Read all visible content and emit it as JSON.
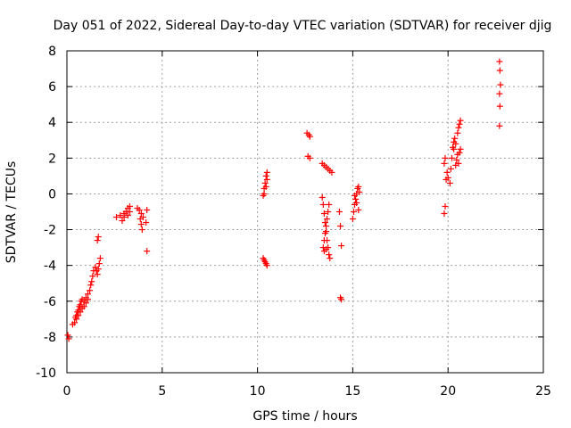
{
  "chart_data": {
    "type": "scatter",
    "title": "Day 051 of 2022, Sidereal Day-to-day VTEC variation (SDTVAR) for receiver djig",
    "xlabel": "GPS time / hours",
    "ylabel": "SDTVAR / TECUs",
    "xlim": [
      0,
      25
    ],
    "ylim": [
      -10,
      8
    ],
    "xticks": [
      "0",
      "5",
      "10",
      "15",
      "20",
      "25"
    ],
    "yticks": [
      "-10",
      "-8",
      "-6",
      "-4",
      "-2",
      "0",
      "2",
      "4",
      "6",
      "8"
    ],
    "grid": true,
    "marker": "+",
    "color": "#ff0000",
    "series": [
      {
        "points": [
          [
            0.05,
            -7.9
          ],
          [
            0.1,
            -8.1
          ],
          [
            0.3,
            -7.3
          ],
          [
            0.4,
            -7.2
          ],
          [
            0.45,
            -6.9
          ],
          [
            0.5,
            -6.8
          ],
          [
            0.55,
            -6.6
          ],
          [
            0.6,
            -6.5
          ],
          [
            0.65,
            -6.3
          ],
          [
            0.7,
            -6.2
          ],
          [
            0.75,
            -6.0
          ],
          [
            0.8,
            -5.9
          ],
          [
            0.9,
            -6.0
          ],
          [
            1.0,
            -5.8
          ],
          [
            1.1,
            -5.6
          ],
          [
            1.2,
            -5.4
          ],
          [
            1.25,
            -5.1
          ],
          [
            1.3,
            -4.9
          ],
          [
            1.35,
            -4.6
          ],
          [
            1.4,
            -4.3
          ],
          [
            1.5,
            -4.1
          ],
          [
            1.55,
            -4.3
          ],
          [
            1.6,
            -4.5
          ],
          [
            1.65,
            -4.2
          ],
          [
            1.7,
            -3.9
          ],
          [
            1.75,
            -3.6
          ],
          [
            1.6,
            -2.6
          ],
          [
            1.65,
            -2.4
          ],
          [
            0.5,
            -7.0
          ],
          [
            0.6,
            -6.8
          ],
          [
            0.7,
            -6.6
          ],
          [
            0.8,
            -6.4
          ],
          [
            0.9,
            -6.3
          ],
          [
            1.0,
            -6.1
          ],
          [
            1.1,
            -5.9
          ],
          [
            2.6,
            -1.3
          ],
          [
            2.8,
            -1.2
          ],
          [
            2.9,
            -1.5
          ],
          [
            3.0,
            -1.1
          ],
          [
            3.1,
            -1.0
          ],
          [
            3.2,
            -0.8
          ],
          [
            3.3,
            -0.7
          ],
          [
            3.0,
            -1.3
          ],
          [
            3.2,
            -1.2
          ],
          [
            3.3,
            -1.0
          ],
          [
            3.7,
            -0.8
          ],
          [
            3.8,
            -0.9
          ],
          [
            3.9,
            -1.1
          ],
          [
            3.85,
            -1.4
          ],
          [
            3.9,
            -1.7
          ],
          [
            3.95,
            -2.0
          ],
          [
            4.0,
            -1.3
          ],
          [
            4.2,
            -0.9
          ],
          [
            4.15,
            -1.6
          ],
          [
            4.2,
            -3.2
          ],
          [
            10.3,
            -0.1
          ],
          [
            10.35,
            0.3
          ],
          [
            10.4,
            0.6
          ],
          [
            10.45,
            1.0
          ],
          [
            10.5,
            1.2
          ],
          [
            10.35,
            0.0
          ],
          [
            10.45,
            0.4
          ],
          [
            10.5,
            0.8
          ],
          [
            10.3,
            -3.6
          ],
          [
            10.35,
            -3.7
          ],
          [
            10.4,
            -3.8
          ],
          [
            10.45,
            -3.9
          ],
          [
            10.5,
            -4.0
          ],
          [
            12.6,
            3.4
          ],
          [
            12.7,
            3.3
          ],
          [
            12.75,
            3.2
          ],
          [
            12.65,
            2.1
          ],
          [
            12.75,
            2.0
          ],
          [
            13.4,
            1.7
          ],
          [
            13.5,
            1.6
          ],
          [
            13.6,
            1.5
          ],
          [
            13.7,
            1.4
          ],
          [
            13.8,
            1.3
          ],
          [
            13.9,
            1.2
          ],
          [
            13.4,
            -0.2
          ],
          [
            13.45,
            -0.6
          ],
          [
            13.5,
            -1.1
          ],
          [
            13.55,
            -1.6
          ],
          [
            13.6,
            -2.1
          ],
          [
            13.65,
            -2.6
          ],
          [
            13.7,
            -3.0
          ],
          [
            13.75,
            -3.4
          ],
          [
            13.8,
            -3.6
          ],
          [
            13.45,
            -3.0
          ],
          [
            13.5,
            -2.6
          ],
          [
            13.55,
            -2.2
          ],
          [
            13.6,
            -1.8
          ],
          [
            13.65,
            -1.4
          ],
          [
            13.7,
            -1.0
          ],
          [
            13.75,
            -0.6
          ],
          [
            13.5,
            -3.2
          ],
          [
            13.6,
            -3.1
          ],
          [
            14.3,
            -1.0
          ],
          [
            14.35,
            -1.8
          ],
          [
            14.4,
            -2.9
          ],
          [
            14.35,
            -5.8
          ],
          [
            14.4,
            -5.9
          ],
          [
            15.0,
            -1.4
          ],
          [
            15.05,
            -1.0
          ],
          [
            15.1,
            -0.6
          ],
          [
            15.15,
            -0.3
          ],
          [
            15.2,
            0.0
          ],
          [
            15.25,
            0.3
          ],
          [
            15.3,
            0.4
          ],
          [
            15.1,
            -0.1
          ],
          [
            15.2,
            -0.5
          ],
          [
            15.3,
            -0.9
          ],
          [
            15.35,
            0.1
          ],
          [
            19.8,
            -1.1
          ],
          [
            19.85,
            -0.7
          ],
          [
            19.9,
            0.8
          ],
          [
            19.95,
            1.2
          ],
          [
            19.8,
            1.7
          ],
          [
            19.85,
            2.0
          ],
          [
            20.0,
            0.9
          ],
          [
            20.1,
            0.6
          ],
          [
            20.15,
            1.4
          ],
          [
            20.2,
            2.0
          ],
          [
            20.25,
            2.6
          ],
          [
            20.3,
            2.9
          ],
          [
            20.35,
            3.1
          ],
          [
            20.4,
            1.6
          ],
          [
            20.45,
            1.9
          ],
          [
            20.5,
            3.4
          ],
          [
            20.55,
            3.7
          ],
          [
            20.6,
            3.9
          ],
          [
            20.65,
            4.1
          ],
          [
            20.5,
            2.2
          ],
          [
            20.55,
            1.7
          ],
          [
            20.6,
            2.3
          ],
          [
            20.65,
            2.5
          ],
          [
            20.4,
            2.8
          ],
          [
            20.3,
            2.5
          ],
          [
            22.7,
            7.4
          ],
          [
            22.72,
            6.9
          ],
          [
            22.75,
            6.1
          ],
          [
            22.7,
            5.6
          ],
          [
            22.72,
            4.9
          ],
          [
            22.7,
            3.8
          ]
        ]
      }
    ]
  }
}
